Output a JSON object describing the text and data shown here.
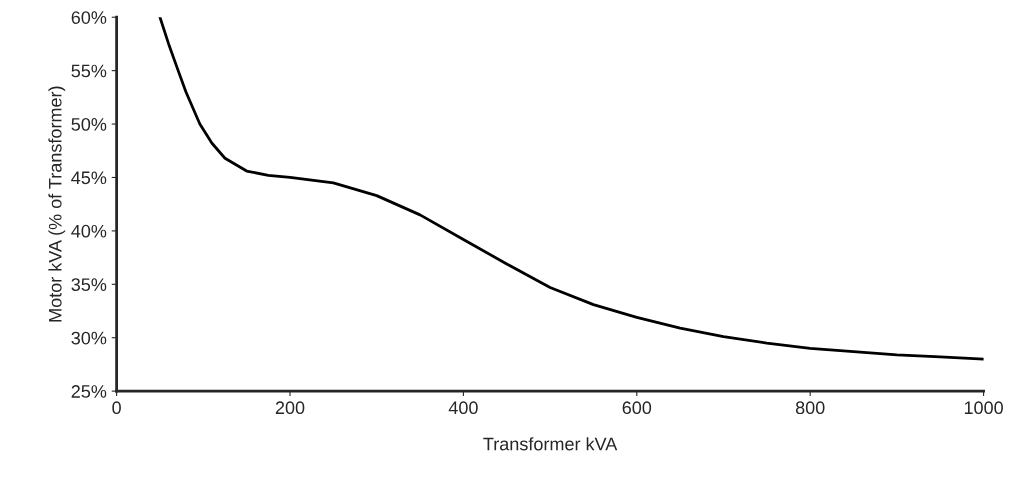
{
  "chart_data": {
    "type": "line",
    "xlabel": "Transformer kVA",
    "ylabel": "Motor kVA (% of Transformer)",
    "x": [
      50,
      60,
      71,
      80,
      96,
      110,
      125,
      150,
      175,
      200,
      250,
      300,
      350,
      400,
      450,
      500,
      550,
      600,
      650,
      700,
      750,
      800,
      850,
      900,
      950,
      1000
    ],
    "series": [
      {
        "color": "#000000",
        "values": [
          60,
          57.5,
          55,
          53,
          50,
          48.2,
          46.8,
          45.6,
          45.2,
          45,
          44.5,
          43.3,
          41.5,
          39.2,
          36.9,
          34.7,
          33.1,
          31.9,
          30.9,
          30.1,
          29.5,
          29,
          28.7,
          28.4,
          28.2,
          28
        ]
      }
    ],
    "xlim": [
      0,
      1000
    ],
    "xticks": [
      0,
      200,
      400,
      600,
      800,
      1000
    ],
    "ylim": [
      25,
      60
    ],
    "yticks": [
      {
        "value": 25,
        "label": "25%"
      },
      {
        "value": 30,
        "label": "30%"
      },
      {
        "value": 35,
        "label": "35%"
      },
      {
        "value": 40,
        "label": "40%"
      },
      {
        "value": 45,
        "label": "45%"
      },
      {
        "value": 50,
        "label": "50%"
      },
      {
        "value": 55,
        "label": "55%"
      },
      {
        "value": 60,
        "label": "60%"
      }
    ],
    "grid": false,
    "marker": "none",
    "line_style": "solid"
  }
}
